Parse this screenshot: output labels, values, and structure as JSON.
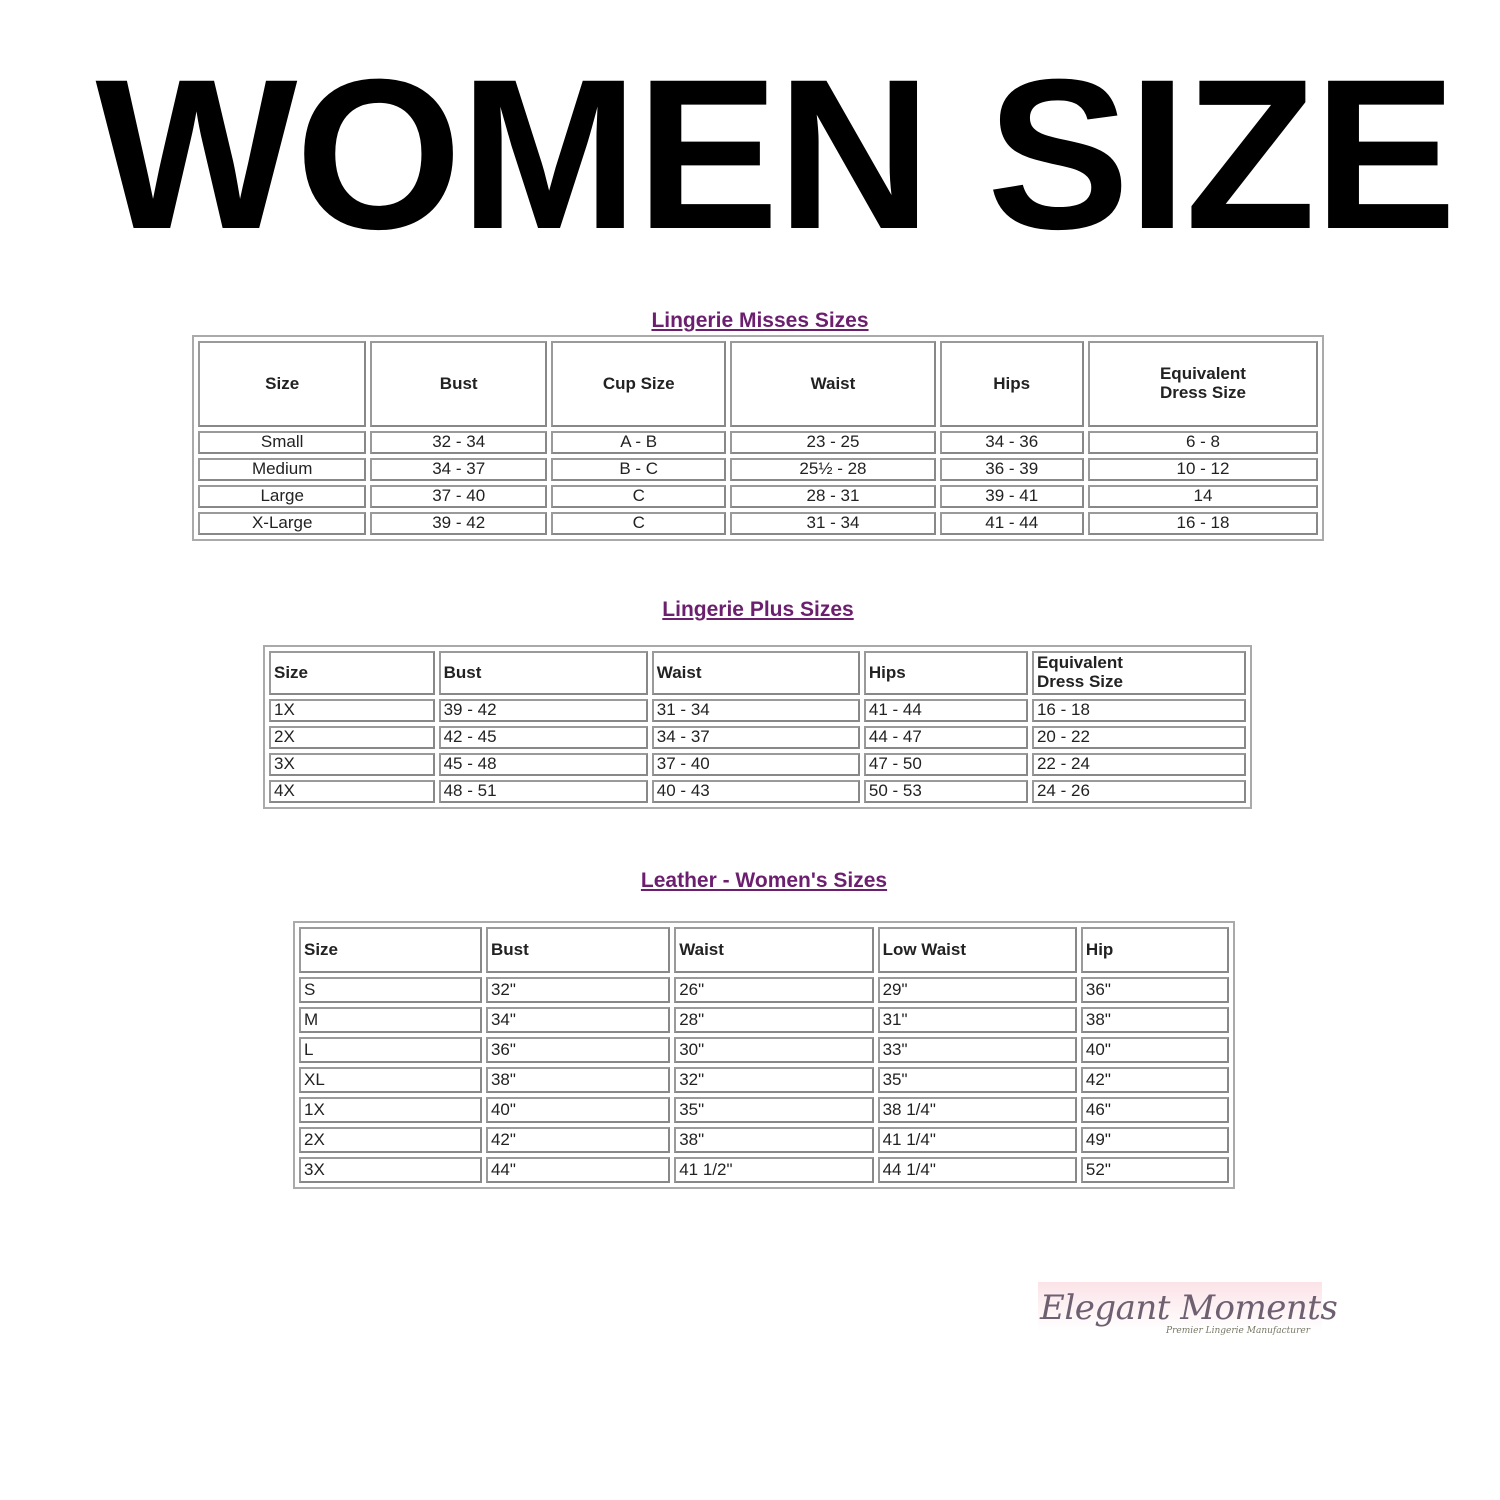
{
  "title": "WOMEN SIZE",
  "tables": [
    {
      "title": "Lingerie Misses Sizes",
      "headers": [
        "Size",
        "Bust",
        "Cup Size",
        "Waist",
        "Hips",
        "Equivalent\nDress Size"
      ],
      "rows": [
        [
          "Small",
          "32 - 34",
          "A - B",
          "23 - 25",
          "34 - 36",
          "6 - 8"
        ],
        [
          "Medium",
          "34 - 37",
          "B - C",
          "25½ - 28",
          "36 - 39",
          "10 - 12"
        ],
        [
          "Large",
          "37 - 40",
          "C",
          "28 - 31",
          "39 - 41",
          "14"
        ],
        [
          "X-Large",
          "39 - 42",
          "C",
          "31 - 34",
          "41 - 44",
          "16 - 18"
        ]
      ]
    },
    {
      "title": "Lingerie Plus Sizes",
      "headers": [
        "Size",
        "Bust",
        "Waist",
        "Hips",
        "Equivalent\nDress Size"
      ],
      "rows": [
        [
          "1X",
          "39 - 42",
          "31 - 34",
          "41 - 44",
          "16 - 18"
        ],
        [
          "2X",
          "42 - 45",
          "34 - 37",
          "44 - 47",
          "20 - 22"
        ],
        [
          "3X",
          "45 - 48",
          "37 - 40",
          "47 - 50",
          "22 - 24"
        ],
        [
          "4X",
          "48 - 51",
          "40 - 43",
          "50 - 53",
          "24 - 26"
        ]
      ]
    },
    {
      "title": "Leather - Women's Sizes",
      "headers": [
        "Size",
        "Bust",
        "Waist",
        "Low Waist",
        "Hip"
      ],
      "rows": [
        [
          "S",
          "32\"",
          "26\"",
          "29\"",
          "36\""
        ],
        [
          "M",
          "34\"",
          "28\"",
          "31\"",
          "38\""
        ],
        [
          "L",
          "36\"",
          "30\"",
          "33\"",
          "40\""
        ],
        [
          "XL",
          "38\"",
          "32\"",
          "35\"",
          "42\""
        ],
        [
          "1X",
          "40\"",
          "35\"",
          "38 1/4\"",
          "46\""
        ],
        [
          "2X",
          "42\"",
          "38\"",
          "41 1/4\"",
          "49\""
        ],
        [
          "3X",
          "44\"",
          "41 1/2\"",
          "44 1/4\"",
          "52\""
        ]
      ]
    }
  ],
  "logo": {
    "name": "Elegant Moments",
    "tagline": "Premier Lingerie Manufacturer"
  },
  "colors": {
    "section_title": "#6b1f6e",
    "title": "#000000"
  }
}
